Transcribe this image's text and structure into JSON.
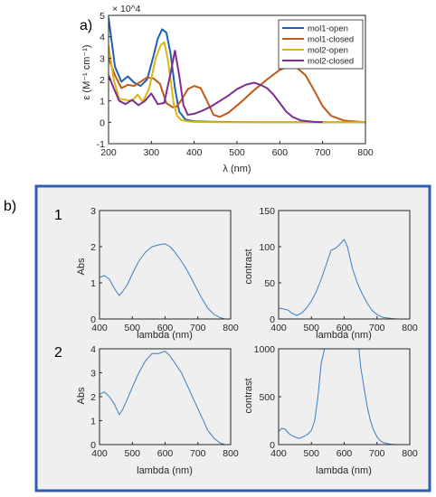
{
  "labels": {
    "panel_a": "a)",
    "panel_b": "b)",
    "row1": "1",
    "row2": "2",
    "a_exponent": "× 10^4",
    "a_xlabel": "λ (nm)",
    "a_ylabel": "ε (M⁻¹ cm⁻¹)",
    "abs": "Abs",
    "contrast": "contrast",
    "lambda": "lambda (nm)"
  },
  "chart_data": [
    {
      "id": "a",
      "type": "line",
      "xlabel": "λ (nm)",
      "ylabel": "ε (M⁻¹ cm⁻¹)",
      "y_multiplier": "× 10^4",
      "xlim": [
        200,
        800
      ],
      "ylim": [
        -1,
        5
      ],
      "xticks": [
        200,
        300,
        400,
        500,
        600,
        700,
        800
      ],
      "yticks": [
        -1,
        0,
        1,
        2,
        3,
        4,
        5
      ],
      "legend_position": "top-right",
      "series": [
        {
          "name": "mol1-open",
          "color": "#1f5fb5",
          "x": [
            200,
            215,
            230,
            245,
            260,
            275,
            290,
            305,
            315,
            325,
            335,
            345,
            355,
            365,
            380,
            400,
            450,
            500,
            600,
            800
          ],
          "y": [
            4.9,
            2.6,
            1.9,
            2.15,
            1.85,
            1.7,
            2.0,
            3.1,
            3.9,
            4.35,
            4.2,
            3.2,
            1.6,
            0.5,
            0.12,
            0.05,
            0.02,
            0.01,
            0.0,
            0.0
          ]
        },
        {
          "name": "mol1-closed",
          "color": "#c05a17",
          "x": [
            200,
            215,
            230,
            245,
            260,
            275,
            290,
            305,
            320,
            335,
            350,
            360,
            372,
            385,
            400,
            415,
            430,
            445,
            460,
            480,
            510,
            540,
            570,
            600,
            620,
            640,
            660,
            680,
            700,
            720,
            750,
            800
          ],
          "y": [
            3.0,
            2.2,
            1.6,
            1.75,
            1.7,
            1.9,
            2.1,
            2.05,
            1.8,
            0.9,
            0.7,
            0.75,
            1.1,
            1.55,
            1.7,
            1.6,
            1.0,
            0.35,
            0.25,
            0.45,
            0.95,
            1.5,
            2.0,
            2.45,
            2.6,
            2.55,
            2.2,
            1.5,
            0.75,
            0.3,
            0.08,
            0.0
          ]
        },
        {
          "name": "mol2-open",
          "color": "#e0b40e",
          "x": [
            200,
            212,
            225,
            240,
            255,
            268,
            280,
            295,
            310,
            322,
            330,
            338,
            345,
            352,
            360,
            370,
            385,
            400,
            450,
            800
          ],
          "y": [
            3.6,
            2.0,
            1.1,
            1.05,
            1.0,
            1.3,
            0.95,
            1.6,
            3.0,
            3.6,
            3.75,
            3.0,
            2.0,
            0.9,
            0.3,
            0.1,
            0.05,
            0.02,
            0.0,
            0.0
          ]
        },
        {
          "name": "mol2-closed",
          "color": "#7b2f8e",
          "x": [
            200,
            212,
            225,
            240,
            255,
            270,
            285,
            300,
            315,
            330,
            345,
            355,
            365,
            375,
            385,
            400,
            420,
            440,
            460,
            480,
            500,
            520,
            540,
            555,
            570,
            585,
            600,
            615,
            630,
            650,
            680,
            700
          ],
          "y": [
            2.2,
            1.6,
            1.0,
            0.85,
            1.05,
            0.8,
            1.0,
            1.35,
            0.85,
            0.9,
            2.3,
            3.35,
            2.2,
            0.8,
            0.35,
            0.4,
            0.55,
            0.75,
            1.0,
            1.25,
            1.55,
            1.75,
            1.85,
            1.75,
            1.6,
            1.3,
            0.9,
            0.5,
            0.25,
            0.08,
            0.02,
            0.0
          ]
        }
      ]
    },
    {
      "id": "b1-abs",
      "type": "line",
      "ylabel": "Abs",
      "xlabel": "lambda (nm)",
      "xlim": [
        400,
        800
      ],
      "ylim": [
        0,
        3
      ],
      "xticks": [
        400,
        500,
        600,
        700,
        800
      ],
      "yticks": [
        0,
        1,
        2,
        3
      ],
      "series": [
        {
          "color": "#3b7fc4",
          "x": [
            400,
            415,
            430,
            445,
            460,
            470,
            485,
            500,
            520,
            540,
            560,
            580,
            600,
            615,
            630,
            650,
            670,
            690,
            710,
            730,
            750,
            770,
            780
          ],
          "y": [
            1.15,
            1.2,
            1.1,
            0.85,
            0.65,
            0.75,
            0.95,
            1.25,
            1.6,
            1.85,
            2.0,
            2.05,
            2.08,
            2.0,
            1.85,
            1.6,
            1.3,
            0.95,
            0.6,
            0.3,
            0.12,
            0.03,
            0.01
          ]
        }
      ]
    },
    {
      "id": "b1-contrast",
      "type": "line",
      "ylabel": "contrast",
      "xlabel": "lambda (nm)",
      "xlim": [
        400,
        800
      ],
      "ylim": [
        0,
        150
      ],
      "xticks": [
        400,
        500,
        600,
        700,
        800
      ],
      "yticks": [
        0,
        50,
        100,
        150
      ],
      "series": [
        {
          "color": "#3b7fc4",
          "x": [
            400,
            415,
            430,
            440,
            455,
            470,
            485,
            500,
            515,
            530,
            545,
            560,
            575,
            590,
            600,
            610,
            625,
            640,
            655,
            670,
            685,
            700,
            720,
            740,
            760,
            780
          ],
          "y": [
            15,
            14,
            12,
            8,
            5,
            8,
            15,
            25,
            38,
            55,
            75,
            95,
            98,
            105,
            110,
            100,
            70,
            50,
            35,
            22,
            12,
            6,
            2,
            1,
            0,
            0
          ]
        }
      ]
    },
    {
      "id": "b2-abs",
      "type": "line",
      "ylabel": "Abs",
      "xlabel": "lambda (nm)",
      "xlim": [
        400,
        800
      ],
      "ylim": [
        0,
        4
      ],
      "xticks": [
        400,
        500,
        600,
        700,
        800
      ],
      "yticks": [
        0,
        1,
        2,
        3,
        4
      ],
      "series": [
        {
          "color": "#3b7fc4",
          "x": [
            400,
            415,
            430,
            445,
            460,
            470,
            485,
            500,
            520,
            540,
            560,
            580,
            600,
            615,
            630,
            650,
            670,
            690,
            710,
            730,
            750,
            770,
            780
          ],
          "y": [
            2.1,
            2.2,
            2.0,
            1.7,
            1.25,
            1.45,
            1.9,
            2.4,
            3.0,
            3.5,
            3.8,
            3.8,
            3.9,
            3.7,
            3.4,
            3.0,
            2.4,
            1.8,
            1.2,
            0.6,
            0.25,
            0.05,
            0.02
          ]
        }
      ]
    },
    {
      "id": "b2-contrast",
      "type": "line",
      "ylabel": "contrast",
      "xlabel": "lambda (nm)",
      "xlim": [
        400,
        800
      ],
      "ylim": [
        0,
        1000
      ],
      "xticks": [
        400,
        500,
        600,
        700,
        800
      ],
      "yticks": [
        0,
        500,
        1000
      ],
      "series": [
        {
          "color": "#3b7fc4",
          "x": [
            400,
            410,
            420,
            430,
            440,
            450,
            460,
            470,
            480,
            490,
            500,
            510,
            520,
            530,
            540,
            560,
            600,
            630,
            645,
            650,
            660,
            670,
            680,
            690,
            700,
            710,
            720,
            740,
            760
          ],
          "y": [
            140,
            170,
            160,
            120,
            95,
            80,
            65,
            75,
            90,
            110,
            150,
            250,
            500,
            850,
            1000,
            1000,
            1000,
            1000,
            1000,
            820,
            600,
            400,
            250,
            150,
            80,
            40,
            20,
            5,
            0
          ]
        }
      ]
    }
  ]
}
